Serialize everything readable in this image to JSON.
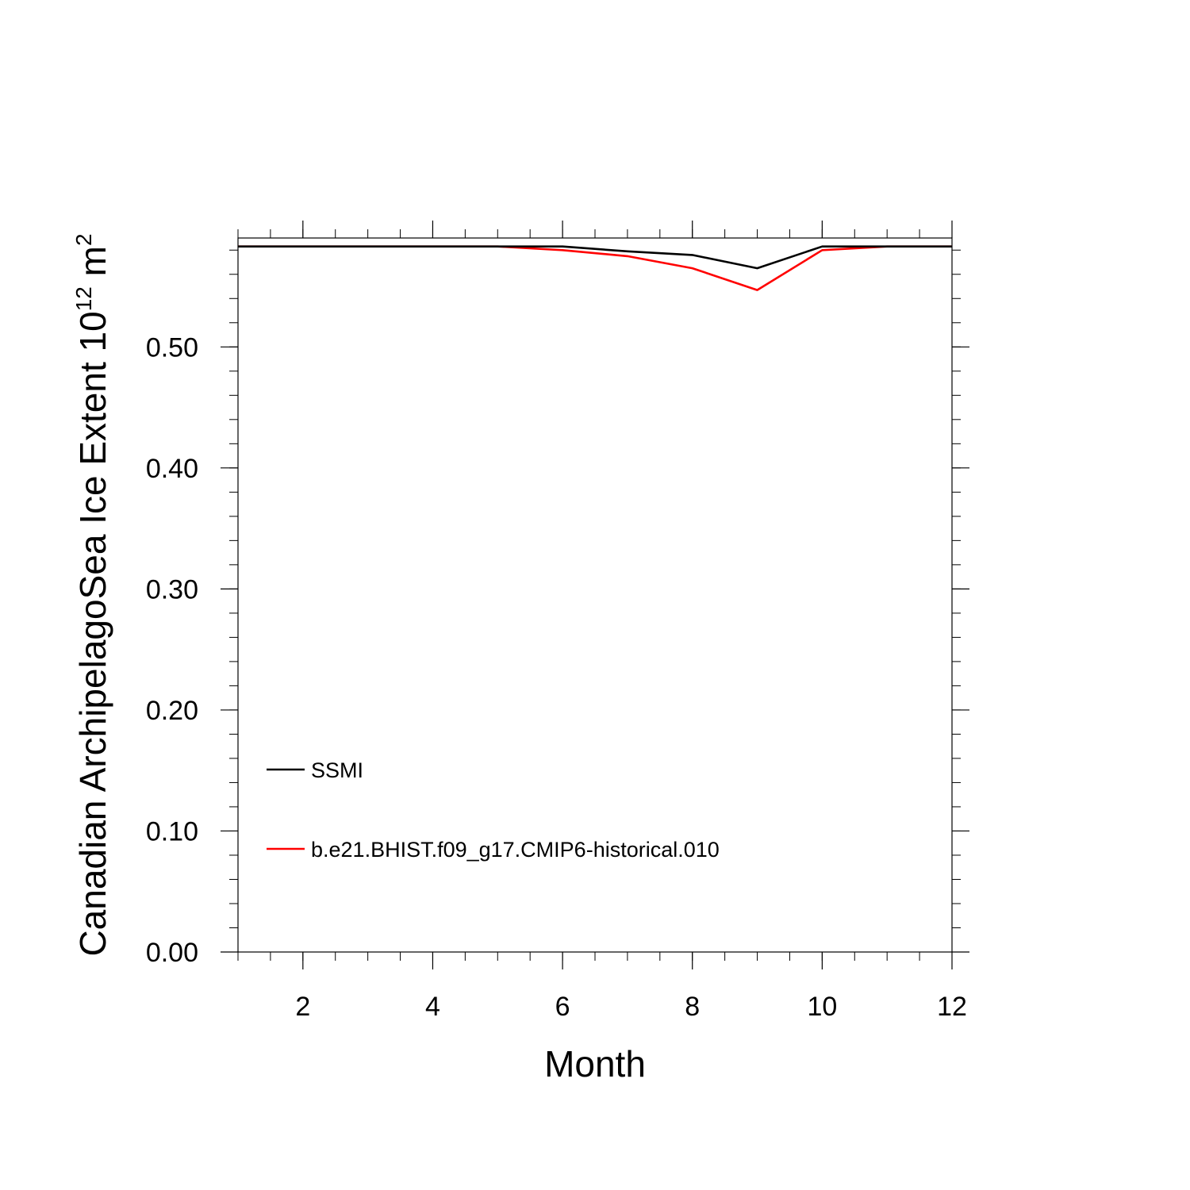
{
  "chart_data": {
    "type": "line",
    "xlabel": "Month",
    "ylabel_main": "Canadian ArchipelagoSea Ice Extent 10",
    "ylabel_exponent": "12",
    "ylabel_unit": " m",
    "ylabel_unit_exponent": "2",
    "xlim": [
      1,
      12
    ],
    "ylim": [
      0.0,
      0.59
    ],
    "x_ticks": [
      2,
      4,
      6,
      8,
      10,
      12
    ],
    "x_tick_labels": [
      "2",
      "4",
      "6",
      "8",
      "10",
      "12"
    ],
    "y_ticks": [
      0.0,
      0.1,
      0.2,
      0.3,
      0.4,
      0.5
    ],
    "y_tick_labels": [
      "0.00",
      "0.10",
      "0.20",
      "0.30",
      "0.40",
      "0.50"
    ],
    "grid": false,
    "legend_position": "lower-left inside",
    "x": [
      1,
      2,
      3,
      4,
      5,
      6,
      7,
      8,
      9,
      10,
      11,
      12
    ],
    "series": [
      {
        "name": "SSMI",
        "color": "#000000",
        "values": [
          0.583,
          0.583,
          0.583,
          0.583,
          0.583,
          0.583,
          0.579,
          0.576,
          0.565,
          0.583,
          0.583,
          0.583
        ]
      },
      {
        "name": "b.e21.BHIST.f09_g17.CMIP6-historical.010",
        "color": "#ff0000",
        "values": [
          0.583,
          0.583,
          0.583,
          0.583,
          0.583,
          0.58,
          0.575,
          0.565,
          0.547,
          0.58,
          0.583,
          0.583
        ]
      }
    ]
  }
}
